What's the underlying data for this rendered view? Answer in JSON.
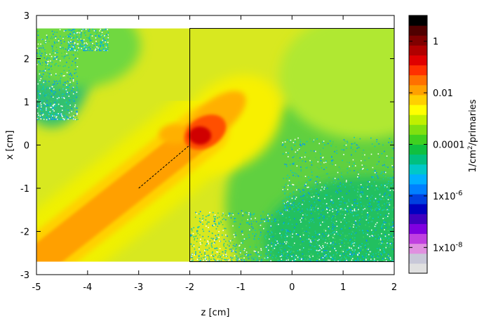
{
  "chart_data": {
    "type": "heatmap",
    "xlabel": "z [cm]",
    "ylabel": "x [cm]",
    "xlim": [
      -5,
      2
    ],
    "ylim": [
      -3,
      3
    ],
    "x_ticks": [
      "-5",
      "-4",
      "-3",
      "-2",
      "-1",
      "0",
      "1",
      "2"
    ],
    "y_ticks": [
      "3",
      "2",
      "1",
      "0",
      "-1",
      "-2",
      "-3"
    ],
    "data_extent": {
      "z": [
        -5,
        2
      ],
      "x": [
        -2.7,
        2.7
      ]
    },
    "colorbar": {
      "label_base": "1/cm",
      "label_exp": "2",
      "label_tail": "/primaries",
      "scale": "log",
      "range": [
        1e-09,
        10
      ],
      "tick_labels": [
        "1",
        "0.01",
        "0.0001",
        "1x10",
        "1x10"
      ],
      "tick_exps": [
        "",
        "",
        "",
        "-6",
        "-8"
      ],
      "tick_values": [
        1,
        0.01,
        0.0001,
        1e-06,
        1e-08
      ]
    },
    "palette": [
      "#e0e0e0",
      "#c8c8d8",
      "#e090e0",
      "#c040e0",
      "#8000e0",
      "#4000c0",
      "#0000c0",
      "#0040e0",
      "#0080ff",
      "#00b0ff",
      "#00c8c8",
      "#00c080",
      "#10c040",
      "#40d020",
      "#80e010",
      "#c0f000",
      "#ffff00",
      "#ffd000",
      "#ffa000",
      "#ff7000",
      "#ff3000",
      "#e00000",
      "#b00000",
      "#800000",
      "#500000",
      "#000000"
    ],
    "annotations": [
      {
        "label": "target boundary",
        "z_from": -2,
        "z_to": 2,
        "x_from": -2.7,
        "x_to": 2.7
      },
      {
        "label": "beam line",
        "z_from": -3.0,
        "x_from": -1.0,
        "z_to": -2.0,
        "x_to": 0.0
      }
    ]
  }
}
